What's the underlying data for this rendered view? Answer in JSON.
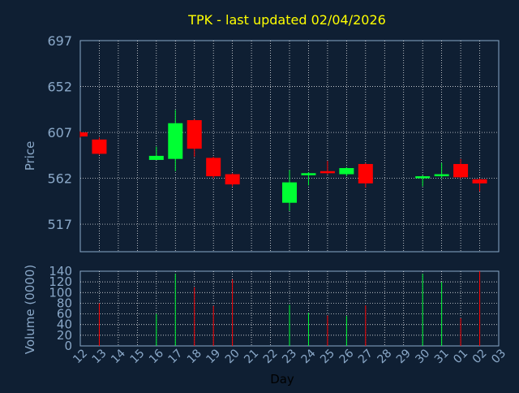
{
  "chart_data": {
    "type": "candlestick",
    "title": "TPK - last updated 02/04/2026",
    "xlabel": "Day",
    "ylabel_price": "Price",
    "ylabel_volume": "Volume (0000)",
    "price_ylim": [
      490,
      697
    ],
    "price_ticks": [
      697,
      652,
      607,
      562,
      517
    ],
    "volume_ylim": [
      0,
      140
    ],
    "volume_ticks": [
      0,
      20,
      40,
      60,
      80,
      100,
      120,
      140
    ],
    "x_tick_labels": [
      "12",
      "13",
      "14",
      "15",
      "16",
      "17",
      "18",
      "19",
      "20",
      "21",
      "22",
      "23",
      "24",
      "25",
      "26",
      "27",
      "28",
      "29",
      "30",
      "31",
      "01",
      "02",
      "03"
    ],
    "grid": true,
    "colors": {
      "background": "#0f1f33",
      "up": "#00ff33",
      "down": "#ff0000",
      "grid": "#ffffff",
      "axis_text": "#8aa8c8",
      "title": "#ffff00"
    },
    "candles": [
      {
        "day": "12",
        "open": 607,
        "close": 603,
        "high": 608,
        "low": 602,
        "volume": 0
      },
      {
        "day": "13",
        "open": 600,
        "close": 586,
        "high": 602,
        "low": 585,
        "volume": 80
      },
      {
        "day": "16",
        "open": 580,
        "close": 584,
        "high": 593,
        "low": 580,
        "volume": 60
      },
      {
        "day": "17",
        "open": 581,
        "close": 616,
        "high": 629,
        "low": 569,
        "volume": 135
      },
      {
        "day": "18",
        "open": 619,
        "close": 591,
        "high": 620,
        "low": 583,
        "volume": 110
      },
      {
        "day": "19",
        "open": 582,
        "close": 564,
        "high": 583,
        "low": 562,
        "volume": 75
      },
      {
        "day": "20",
        "open": 566,
        "close": 556,
        "high": 567,
        "low": 554,
        "volume": 125
      },
      {
        "day": "23",
        "open": 538,
        "close": 558,
        "high": 570,
        "low": 530,
        "volume": 77
      },
      {
        "day": "24",
        "open": 565,
        "close": 567,
        "high": 568,
        "low": 555,
        "volume": 62
      },
      {
        "day": "25",
        "open": 569,
        "close": 567,
        "high": 579,
        "low": 566,
        "volume": 57
      },
      {
        "day": "26",
        "open": 566,
        "close": 572,
        "high": 573,
        "low": 564,
        "volume": 56
      },
      {
        "day": "27",
        "open": 576,
        "close": 557,
        "high": 577,
        "low": 553,
        "volume": 76
      },
      {
        "day": "30",
        "open": 562,
        "close": 564,
        "high": 565,
        "low": 554,
        "volume": 135
      },
      {
        "day": "31",
        "open": 564,
        "close": 566,
        "high": 577,
        "low": 562,
        "volume": 120
      },
      {
        "day": "01",
        "open": 576,
        "close": 563,
        "high": 581,
        "low": 562,
        "volume": 52
      },
      {
        "day": "02",
        "open": 561,
        "close": 557,
        "high": 562,
        "low": 549,
        "volume": 140
      }
    ]
  }
}
